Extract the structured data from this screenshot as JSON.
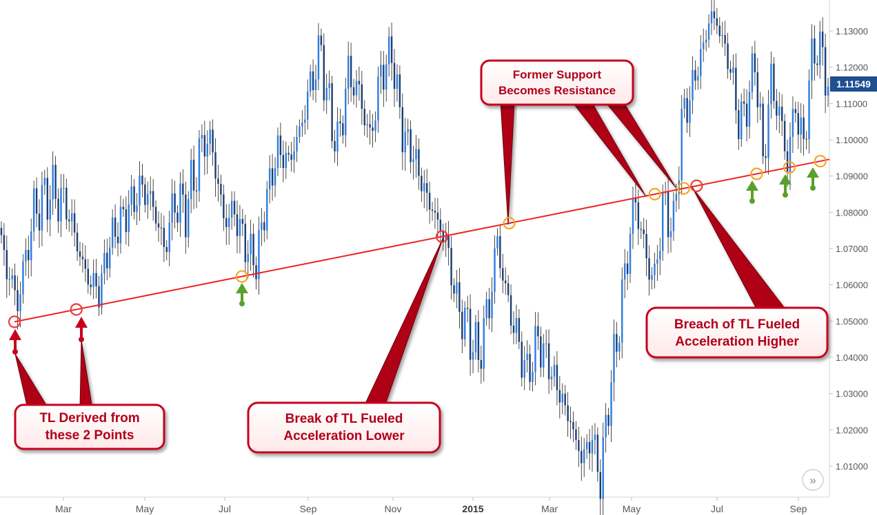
{
  "chart_data": {
    "type": "candlestick",
    "title": "",
    "xlabel": "",
    "ylabel": "",
    "ylim": [
      1.0,
      1.14
    ],
    "yticks": [
      "1.01000",
      "1.02000",
      "1.03000",
      "1.04000",
      "1.05000",
      "1.06000",
      "1.07000",
      "1.08000",
      "1.09000",
      "1.10000",
      "1.11000",
      "1.12000",
      "1.13000"
    ],
    "xticks": [
      {
        "label": "Mar",
        "bold": false
      },
      {
        "label": "May",
        "bold": false
      },
      {
        "label": "Jul",
        "bold": false
      },
      {
        "label": "Sep",
        "bold": false
      },
      {
        "label": "Nov",
        "bold": false
      },
      {
        "label": "2015",
        "bold": true
      },
      {
        "label": "Mar",
        "bold": false
      },
      {
        "label": "May",
        "bold": false
      },
      {
        "label": "Jul",
        "bold": false
      },
      {
        "label": "Sep",
        "bold": false
      }
    ],
    "last_price": "1.11549",
    "price_path": [
      {
        "i": 0,
        "v": 1.07
      },
      {
        "i": 6,
        "v": 1.055
      },
      {
        "i": 12,
        "v": 1.08
      },
      {
        "i": 18,
        "v": 1.086
      },
      {
        "i": 24,
        "v": 1.082
      },
      {
        "i": 31,
        "v": 1.063
      },
      {
        "i": 36,
        "v": 1.058
      },
      {
        "i": 40,
        "v": 1.072
      },
      {
        "i": 46,
        "v": 1.08
      },
      {
        "i": 52,
        "v": 1.087
      },
      {
        "i": 56,
        "v": 1.082
      },
      {
        "i": 60,
        "v": 1.07
      },
      {
        "i": 64,
        "v": 1.083
      },
      {
        "i": 68,
        "v": 1.081
      },
      {
        "i": 72,
        "v": 1.092
      },
      {
        "i": 75,
        "v": 1.101
      },
      {
        "i": 78,
        "v": 1.097
      },
      {
        "i": 82,
        "v": 1.078
      },
      {
        "i": 86,
        "v": 1.08
      },
      {
        "i": 90,
        "v": 1.071
      },
      {
        "i": 94,
        "v": 1.066
      },
      {
        "i": 98,
        "v": 1.085
      },
      {
        "i": 102,
        "v": 1.097
      },
      {
        "i": 106,
        "v": 1.094
      },
      {
        "i": 110,
        "v": 1.102
      },
      {
        "i": 114,
        "v": 1.115
      },
      {
        "i": 118,
        "v": 1.125
      },
      {
        "i": 120,
        "v": 1.112
      },
      {
        "i": 124,
        "v": 1.098
      },
      {
        "i": 128,
        "v": 1.118
      },
      {
        "i": 132,
        "v": 1.113
      },
      {
        "i": 136,
        "v": 1.1
      },
      {
        "i": 140,
        "v": 1.118
      },
      {
        "i": 144,
        "v": 1.124
      },
      {
        "i": 148,
        "v": 1.102
      },
      {
        "i": 152,
        "v": 1.096
      },
      {
        "i": 156,
        "v": 1.086
      },
      {
        "i": 160,
        "v": 1.079
      },
      {
        "i": 164,
        "v": 1.072
      },
      {
        "i": 168,
        "v": 1.055
      },
      {
        "i": 172,
        "v": 1.048
      },
      {
        "i": 176,
        "v": 1.04
      },
      {
        "i": 180,
        "v": 1.055
      },
      {
        "i": 183,
        "v": 1.072
      },
      {
        "i": 186,
        "v": 1.058
      },
      {
        "i": 190,
        "v": 1.046
      },
      {
        "i": 194,
        "v": 1.035
      },
      {
        "i": 198,
        "v": 1.045
      },
      {
        "i": 202,
        "v": 1.038
      },
      {
        "i": 206,
        "v": 1.03
      },
      {
        "i": 210,
        "v": 1.022
      },
      {
        "i": 214,
        "v": 1.012
      },
      {
        "i": 218,
        "v": 1.018
      },
      {
        "i": 221,
        "v": 1.006
      },
      {
        "i": 224,
        "v": 1.028
      },
      {
        "i": 228,
        "v": 1.05
      },
      {
        "i": 232,
        "v": 1.075
      },
      {
        "i": 234,
        "v": 1.083
      },
      {
        "i": 238,
        "v": 1.067
      },
      {
        "i": 241,
        "v": 1.061
      },
      {
        "i": 244,
        "v": 1.082
      },
      {
        "i": 248,
        "v": 1.076
      },
      {
        "i": 251,
        "v": 1.105
      },
      {
        "i": 254,
        "v": 1.112
      },
      {
        "i": 258,
        "v": 1.123
      },
      {
        "i": 262,
        "v": 1.135
      },
      {
        "i": 266,
        "v": 1.128
      },
      {
        "i": 270,
        "v": 1.116
      },
      {
        "i": 272,
        "v": 1.104
      },
      {
        "i": 276,
        "v": 1.112
      },
      {
        "i": 278,
        "v": 1.123
      },
      {
        "i": 281,
        "v": 1.094
      },
      {
        "i": 284,
        "v": 1.116
      },
      {
        "i": 287,
        "v": 1.107
      },
      {
        "i": 290,
        "v": 1.094
      },
      {
        "i": 293,
        "v": 1.11
      },
      {
        "i": 296,
        "v": 1.097
      },
      {
        "i": 298,
        "v": 1.117
      },
      {
        "i": 301,
        "v": 1.127
      },
      {
        "i": 303,
        "v": 1.122
      },
      {
        "i": 305,
        "v": 1.115
      }
    ],
    "trendline": {
      "start": 1.0498,
      "end": 1.0946,
      "color": "#ee2222"
    },
    "colors": {
      "bull": "#2f7de1",
      "bear": "#1b3f77",
      "touch_red": "#ee3b3b",
      "touch_orange": "#f5a623",
      "arrow_green": "#5aa02c",
      "arrow_red": "#c8001e"
    },
    "touch_points": [
      {
        "type": "red",
        "date_label": "",
        "value": 1.0498
      },
      {
        "type": "red",
        "value": 1.0532
      },
      {
        "type": "orange",
        "value": 1.0623
      },
      {
        "type": "red",
        "value": 1.0733
      },
      {
        "type": "orange",
        "value": 1.077
      },
      {
        "type": "orange",
        "value": 1.085
      },
      {
        "type": "orange",
        "value": 1.0866
      },
      {
        "type": "red",
        "value": 1.0873
      },
      {
        "type": "orange",
        "value": 1.0906
      },
      {
        "type": "orange",
        "value": 1.0924
      },
      {
        "type": "orange",
        "value": 1.0941
      }
    ],
    "annotations": [
      {
        "id": "tl-derived",
        "lines": [
          "TL Derived from",
          "these 2 Points"
        ]
      },
      {
        "id": "break-lower",
        "lines": [
          "Break of TL Fueled",
          "Acceleration Lower"
        ]
      },
      {
        "id": "former-support",
        "lines": [
          "Former Support",
          "Becomes Resistance"
        ]
      },
      {
        "id": "breach-higher",
        "lines": [
          "Breach of TL Fueled",
          "Acceleration Higher"
        ]
      }
    ]
  },
  "ui": {
    "scroll_icon": "double-chevron-right-icon",
    "scroll_glyph": "»"
  }
}
